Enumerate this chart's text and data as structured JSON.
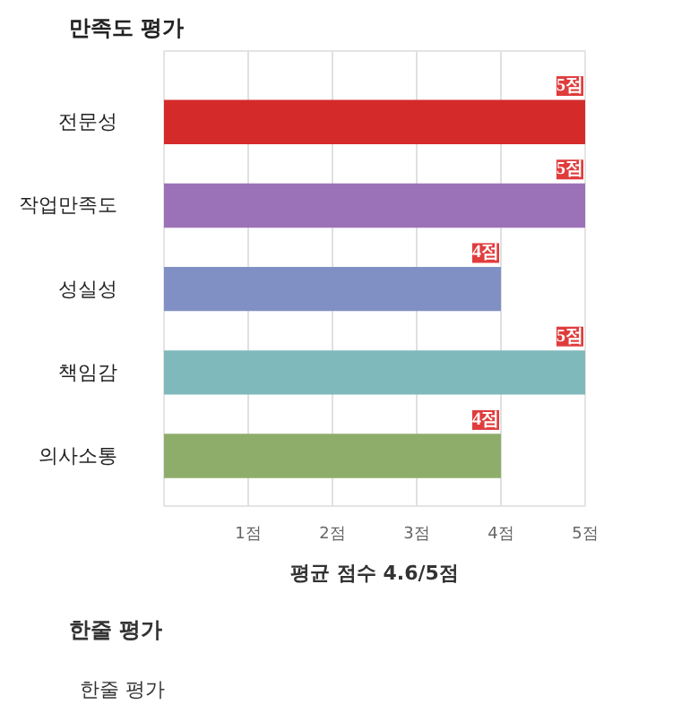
{
  "chart_data": {
    "type": "bar",
    "orientation": "horizontal",
    "title": "만족도 평가",
    "categories": [
      "전문성",
      "작업만족도",
      "성실성",
      "책임감",
      "의사소통"
    ],
    "values": [
      5,
      5,
      4,
      5,
      4
    ],
    "colors": [
      "#d42a2a",
      "#9b72b8",
      "#8190c4",
      "#7fb9bb",
      "#8fad6a"
    ],
    "value_labels": [
      "5점",
      "5점",
      "4점",
      "5점",
      "4점"
    ],
    "xlim": [
      0,
      5
    ],
    "xticks": [
      {
        "value": 1,
        "label": "1점"
      },
      {
        "value": 2,
        "label": "2점"
      },
      {
        "value": 3,
        "label": "3점"
      },
      {
        "value": 4,
        "label": "4점"
      },
      {
        "value": 5,
        "label": "5점"
      }
    ],
    "grid": "x",
    "annotations": [
      "평균 점수 4.6/5점",
      "한줄 평가",
      "한줄 평가"
    ]
  }
}
